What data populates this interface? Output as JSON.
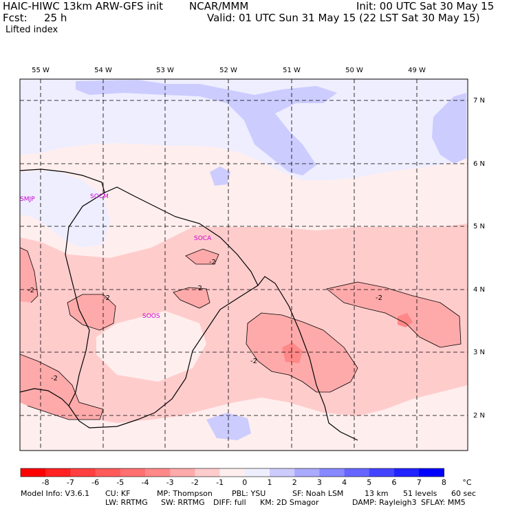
{
  "header": {
    "model": "HAIC-HIWC 13km ARW-GFS init",
    "org": "NCAR/MMM",
    "init": "Init: 00 UTC Sat 30 May 15",
    "fcst_label": "Fcst:",
    "fcst_value": "25 h",
    "valid": "Valid: 01 UTC Sun 31 May 15 (22 LST Sat 30 May 15)",
    "field": "Lifted index"
  },
  "map": {
    "lon_labels": [
      "55 W",
      "54 W",
      "53 W",
      "52 W",
      "51 W",
      "50 W",
      "49 W"
    ],
    "lat_labels": [
      "7 N",
      "6 N",
      "5 N",
      "4 N",
      "3 N",
      "2 N"
    ],
    "stations": [
      "SMJP",
      "SOCM",
      "SOCA",
      "SOOS"
    ],
    "contour_labels": [
      "-2",
      "-2",
      "-2",
      "-2",
      "-2",
      "-2",
      "-2"
    ]
  },
  "colorbar": {
    "labels": [
      "-8",
      "-7",
      "-6",
      "-5",
      "-4",
      "-3",
      "-2",
      "-1",
      "0",
      "1",
      "2",
      "3",
      "4",
      "5",
      "6",
      "7",
      "8"
    ],
    "unit": "°C",
    "colors": [
      "#ff0000",
      "#ff2222",
      "#ff4040",
      "#ff5a5a",
      "#ff7070",
      "#ff8888",
      "#ffaaaa",
      "#ffcccc",
      "#ffeeee",
      "#eeeeff",
      "#ccccff",
      "#aaaaff",
      "#8888ff",
      "#6666ff",
      "#4444ff",
      "#2222ff",
      "#0000ff"
    ]
  },
  "footer": {
    "line1": [
      "Model Info: V3.6.1",
      "CU: KF",
      "MP: Thompson",
      "PBL: YSU",
      "SF: Noah LSM",
      "13 km",
      "51 levels",
      "60 sec"
    ],
    "line2": [
      "LW: RRTMG",
      "SW: RRTMG",
      "DIFF: full",
      "KM: 2D Smagor",
      "DAMP: Rayleigh3",
      "SFLAY: MM5"
    ]
  }
}
